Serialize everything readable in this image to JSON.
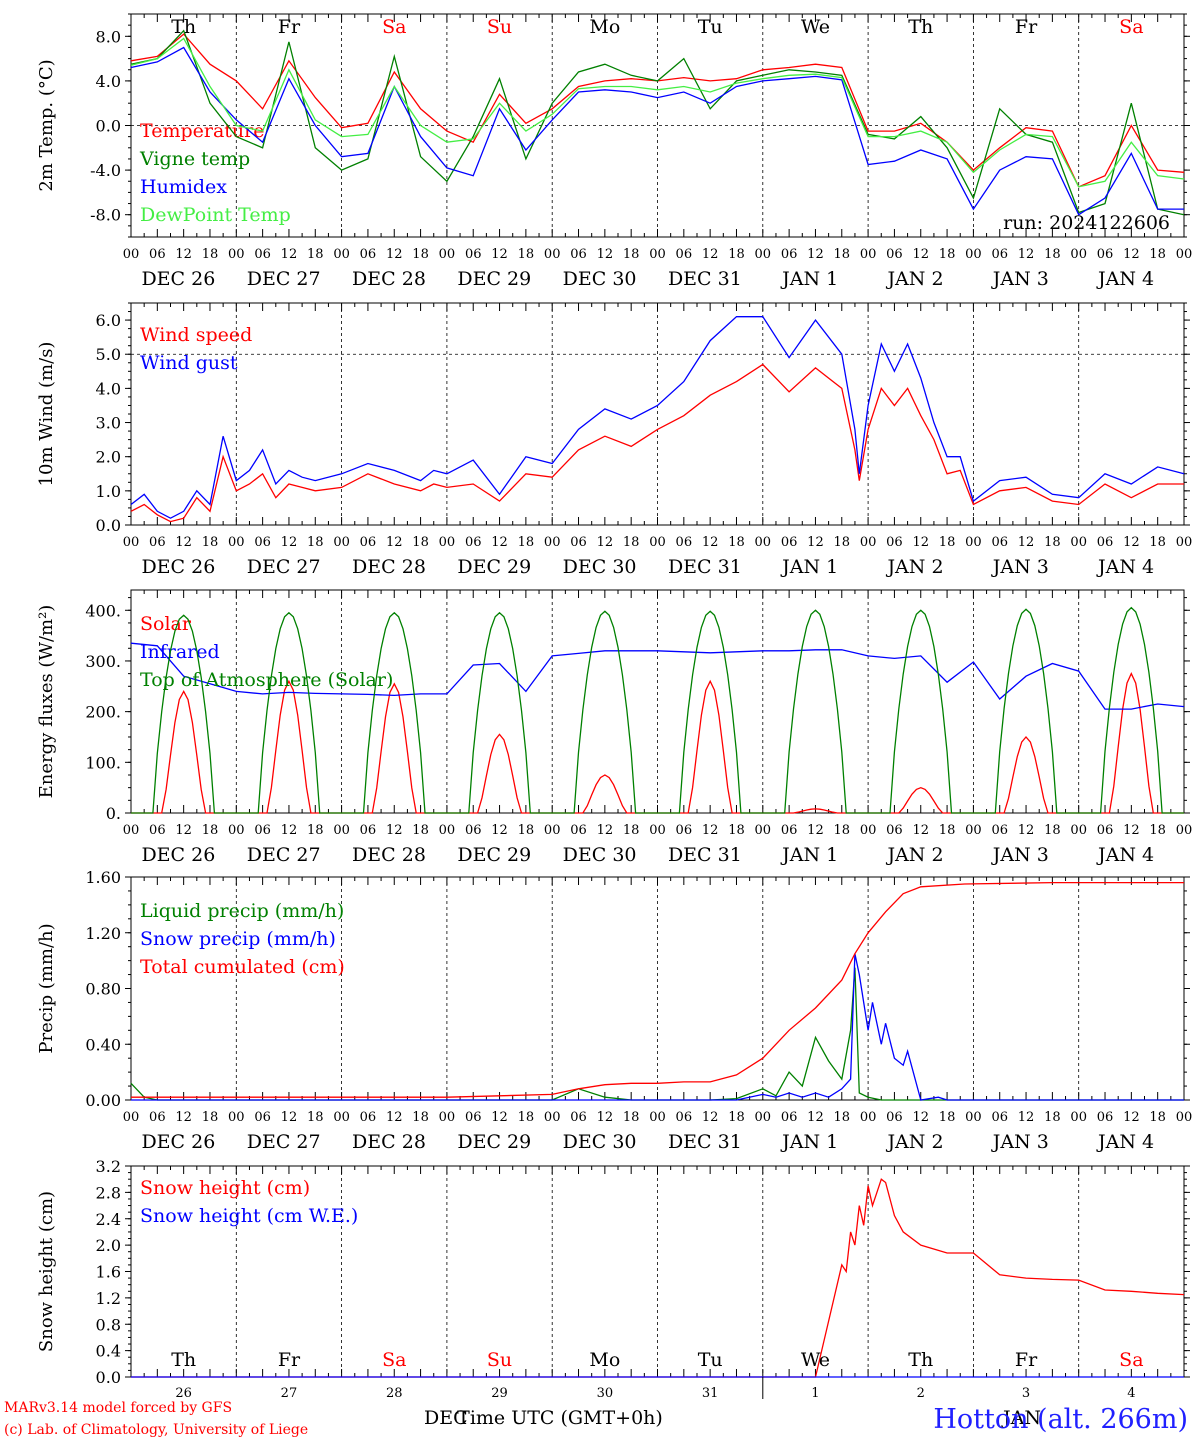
{
  "chart_data": [
    {
      "type": "line",
      "ylabel": "2m Temp. (°C)",
      "ylim": [
        -10,
        10
      ],
      "yticks": [
        "8.0",
        "4.0",
        "0.0",
        "-4.0",
        "-8.0"
      ],
      "ytick_values": [
        8,
        4,
        0,
        -4,
        -8
      ],
      "dashed_y": 0,
      "day_names": [
        "Th",
        "Fr",
        "Sa",
        "Su",
        "Mo",
        "Tu",
        "We",
        "Th",
        "Fr",
        "Sa"
      ],
      "run_label": "run: 2024122606",
      "x_unit": "hours from 00 UTC Dec 26",
      "series": [
        {
          "name": "Temperature",
          "color": "#ff0000",
          "x": [
            0,
            6,
            12,
            18,
            24,
            30,
            36,
            42,
            48,
            54,
            60,
            66,
            72,
            78,
            84,
            90,
            96,
            102,
            108,
            114,
            120,
            126,
            132,
            138,
            144,
            150,
            156,
            162,
            168,
            174,
            180,
            186,
            192,
            198,
            204,
            210,
            216,
            222,
            228,
            234,
            240
          ],
          "y": [
            5.8,
            6.2,
            8.2,
            5.5,
            4,
            1.5,
            5.8,
            2.5,
            -0.2,
            0.2,
            4.8,
            1.5,
            -0.5,
            -1.5,
            2.8,
            0.2,
            1.5,
            3.5,
            4,
            4.2,
            4,
            4.3,
            4,
            4.2,
            5,
            5.2,
            5.5,
            5.2,
            -0.5,
            -0.5,
            0.2,
            -1.5,
            -4,
            -2,
            -0.2,
            -0.5,
            -5.5,
            -4.5,
            0,
            -4,
            -4.2
          ]
        },
        {
          "name": "Vigne temp",
          "color": "#008000",
          "x": [
            0,
            6,
            12,
            18,
            24,
            30,
            36,
            42,
            48,
            54,
            60,
            66,
            72,
            78,
            84,
            90,
            96,
            102,
            108,
            114,
            120,
            126,
            132,
            138,
            144,
            150,
            156,
            162,
            168,
            174,
            180,
            186,
            192,
            198,
            204,
            210,
            216,
            222,
            228,
            234,
            240
          ],
          "y": [
            5.5,
            6,
            8.5,
            2,
            -1,
            -2,
            7.5,
            -2,
            -4,
            -3,
            6.2,
            -2.8,
            -5,
            -1,
            4.2,
            -3,
            2,
            4.8,
            5.5,
            4.5,
            4,
            6,
            1.5,
            4,
            4.5,
            5,
            4.8,
            4.5,
            -0.8,
            -1.2,
            0.8,
            -2,
            -6.5,
            1.5,
            -0.8,
            -1.5,
            -7.8,
            -7,
            2,
            -7.5,
            -8
          ]
        },
        {
          "name": "Humidex",
          "color": "#0000ff",
          "x": [
            0,
            6,
            12,
            18,
            24,
            30,
            36,
            42,
            48,
            54,
            60,
            66,
            72,
            78,
            84,
            90,
            96,
            102,
            108,
            114,
            120,
            126,
            132,
            138,
            144,
            150,
            156,
            162,
            168,
            174,
            180,
            186,
            192,
            198,
            204,
            210,
            216,
            222,
            228,
            234,
            240
          ],
          "y": [
            5.2,
            5.7,
            7,
            3,
            0.5,
            -1.5,
            4.2,
            0,
            -2.8,
            -2.5,
            3.5,
            -1,
            -3.8,
            -4.5,
            1.5,
            -2.2,
            0.5,
            3,
            3.2,
            3,
            2.5,
            3,
            2,
            3.5,
            4,
            4.2,
            4.4,
            4.1,
            -3.5,
            -3.2,
            -2.2,
            -3,
            -7.5,
            -4,
            -2.8,
            -3,
            -8,
            -6.5,
            -2.5,
            -7.5,
            -7.5
          ]
        },
        {
          "name": "DewPoint Temp",
          "color": "#44ee44",
          "x": [
            0,
            6,
            12,
            18,
            24,
            30,
            36,
            42,
            48,
            54,
            60,
            66,
            72,
            78,
            84,
            90,
            96,
            102,
            108,
            114,
            120,
            126,
            132,
            138,
            144,
            150,
            156,
            162,
            168,
            174,
            180,
            186,
            192,
            198,
            204,
            210,
            216,
            222,
            228,
            234,
            240
          ],
          "y": [
            5.4,
            6,
            7.8,
            3.5,
            0,
            -0.5,
            5,
            0.5,
            -1,
            -0.8,
            3.5,
            0,
            -1.5,
            -1.2,
            2,
            -0.5,
            1,
            3.3,
            3.5,
            3.5,
            3.2,
            3.5,
            3,
            3.8,
            4.2,
            4.5,
            4.6,
            4.3,
            -1,
            -1,
            -0.5,
            -1.5,
            -4.2,
            -2.2,
            -0.8,
            -1,
            -5.5,
            -5,
            -1.5,
            -4.5,
            -4.8
          ]
        }
      ]
    },
    {
      "type": "line",
      "ylabel": "10m Wind (m/s)",
      "ylim": [
        0,
        6.5
      ],
      "yticks": [
        "6.0",
        "5.0",
        "4.0",
        "3.0",
        "2.0",
        "1.0",
        "0.0"
      ],
      "ytick_values": [
        6,
        5,
        4,
        3,
        2,
        1,
        0
      ],
      "dashed_y": 5,
      "x_unit": "hours from 00 UTC Dec 26",
      "series": [
        {
          "name": "Wind speed",
          "color": "#ff0000",
          "x": [
            0,
            3,
            6,
            9,
            12,
            15,
            18,
            21,
            24,
            27,
            30,
            33,
            36,
            39,
            42,
            48,
            54,
            60,
            66,
            69,
            72,
            78,
            84,
            90,
            96,
            102,
            108,
            114,
            120,
            126,
            132,
            138,
            144,
            150,
            156,
            162,
            165,
            166,
            168,
            171,
            174,
            177,
            180,
            183,
            186,
            189,
            192,
            198,
            204,
            210,
            216,
            222,
            228,
            234,
            240
          ],
          "y": [
            0.4,
            0.6,
            0.3,
            0.1,
            0.2,
            0.8,
            0.4,
            2,
            1,
            1.2,
            1.5,
            0.8,
            1.2,
            1.1,
            1,
            1.1,
            1.5,
            1.2,
            1,
            1.2,
            1.1,
            1.2,
            0.7,
            1.5,
            1.4,
            2.2,
            2.6,
            2.3,
            2.8,
            3.2,
            3.8,
            4.2,
            4.7,
            3.9,
            4.6,
            4,
            2.2,
            1.3,
            2.8,
            4,
            3.5,
            4,
            3.2,
            2.5,
            1.5,
            1.6,
            0.6,
            1,
            1.1,
            0.7,
            0.6,
            1.2,
            0.8,
            1.2,
            1.2
          ]
        },
        {
          "name": "Wind gust",
          "color": "#0000ff",
          "x": [
            0,
            3,
            6,
            9,
            12,
            15,
            18,
            21,
            24,
            27,
            30,
            33,
            36,
            39,
            42,
            48,
            54,
            60,
            66,
            69,
            72,
            78,
            84,
            90,
            96,
            102,
            108,
            114,
            120,
            126,
            132,
            138,
            144,
            150,
            156,
            162,
            165,
            166,
            168,
            171,
            174,
            177,
            180,
            183,
            186,
            189,
            192,
            198,
            204,
            210,
            216,
            222,
            228,
            234,
            240
          ],
          "y": [
            0.6,
            0.9,
            0.4,
            0.2,
            0.4,
            1,
            0.6,
            2.6,
            1.3,
            1.6,
            2.2,
            1.2,
            1.6,
            1.4,
            1.3,
            1.5,
            1.8,
            1.6,
            1.3,
            1.6,
            1.5,
            1.9,
            0.9,
            2,
            1.8,
            2.8,
            3.4,
            3.1,
            3.5,
            4.2,
            5.4,
            6.1,
            6.1,
            4.9,
            6,
            5,
            2.8,
            1.5,
            3.5,
            5.3,
            4.5,
            5.3,
            4.3,
            3,
            2,
            2,
            0.7,
            1.3,
            1.4,
            0.9,
            0.8,
            1.5,
            1.2,
            1.7,
            1.5
          ]
        }
      ]
    },
    {
      "type": "line",
      "ylabel": "Energy fluxes (W/m²)",
      "ylim": [
        0,
        440
      ],
      "yticks": [
        "400.",
        "300.",
        "200.",
        "100.",
        "0."
      ],
      "ytick_values": [
        400,
        300,
        200,
        100,
        0
      ],
      "x_unit": "hours from 00 UTC Dec 26",
      "series": [
        {
          "name": "Solar",
          "color": "#ff0000",
          "solar_peaks": [
            240,
            260,
            255,
            155,
            75,
            260,
            8,
            50,
            150,
            275
          ]
        },
        {
          "name": "Infrared",
          "color": "#0000ff",
          "x": [
            0,
            6,
            12,
            18,
            24,
            30,
            36,
            42,
            48,
            54,
            60,
            66,
            72,
            78,
            84,
            90,
            96,
            102,
            108,
            114,
            120,
            126,
            132,
            138,
            144,
            150,
            156,
            162,
            168,
            174,
            180,
            186,
            192,
            198,
            204,
            210,
            216,
            222,
            228,
            234,
            240
          ],
          "y": [
            335,
            330,
            270,
            255,
            240,
            235,
            238,
            236,
            235,
            234,
            232,
            235,
            235,
            292,
            295,
            240,
            310,
            315,
            320,
            320,
            320,
            318,
            316,
            318,
            320,
            320,
            322,
            322,
            310,
            305,
            310,
            258,
            298,
            225,
            270,
            295,
            280,
            205,
            205,
            215,
            210
          ]
        },
        {
          "name": "Top of Atmosphere (Solar)",
          "color": "#008000",
          "toa_peaks": [
            390,
            395,
            395,
            395,
            398,
            398,
            400,
            400,
            402,
            405
          ]
        }
      ]
    },
    {
      "type": "line",
      "ylabel": "Precip (mm/h)",
      "ylim": [
        0,
        1.6
      ],
      "yticks": [
        "1.60",
        "1.20",
        "0.80",
        "0.40",
        "0.00"
      ],
      "ytick_values": [
        1.6,
        1.2,
        0.8,
        0.4,
        0
      ],
      "x_unit": "hours from 00 UTC Dec 26",
      "series": [
        {
          "name": "Liquid precip (mm/h)",
          "color": "#008000",
          "x": [
            0,
            3,
            6,
            12,
            96,
            102,
            108,
            114,
            132,
            138,
            144,
            147,
            150,
            153,
            156,
            159,
            162,
            164,
            165,
            166,
            168,
            171,
            174,
            180,
            192,
            240
          ],
          "y": [
            0.12,
            0.02,
            0,
            0,
            0,
            0.08,
            0.02,
            0,
            0,
            0.01,
            0.08,
            0.03,
            0.2,
            0.1,
            0.45,
            0.28,
            0.15,
            0.5,
            0.95,
            0.05,
            0.02,
            0,
            0,
            0,
            0,
            0
          ]
        },
        {
          "name": "Snow precip (mm/h)",
          "color": "#0000ff",
          "x": [
            0,
            138,
            144,
            147,
            150,
            153,
            156,
            159,
            162,
            164,
            165,
            166,
            168,
            169,
            171,
            172,
            174,
            176,
            177,
            180,
            184,
            186,
            240
          ],
          "y": [
            0,
            0,
            0.04,
            0.02,
            0.05,
            0.02,
            0.05,
            0.02,
            0.08,
            0.15,
            1.05,
            0.9,
            0.5,
            0.7,
            0.4,
            0.55,
            0.3,
            0.25,
            0.35,
            0,
            0.02,
            0,
            0
          ]
        },
        {
          "name": "Total cumulated (cm)",
          "color": "#ff0000",
          "x": [
            0,
            72,
            84,
            96,
            102,
            108,
            114,
            120,
            126,
            132,
            138,
            144,
            150,
            156,
            162,
            165,
            168,
            172,
            176,
            180,
            190,
            210,
            240
          ],
          "y": [
            0.02,
            0.02,
            0.03,
            0.04,
            0.08,
            0.11,
            0.12,
            0.12,
            0.13,
            0.13,
            0.18,
            0.3,
            0.5,
            0.66,
            0.86,
            1.05,
            1.2,
            1.35,
            1.48,
            1.53,
            1.55,
            1.56,
            1.56
          ]
        }
      ]
    },
    {
      "type": "line",
      "ylabel": "Snow height (cm)",
      "ylim": [
        0,
        3.2
      ],
      "yticks": [
        "3.2",
        "2.8",
        "2.4",
        "2.0",
        "1.6",
        "1.2",
        "0.8",
        "0.4",
        "0.0"
      ],
      "ytick_values": [
        3.2,
        2.8,
        2.4,
        2,
        1.6,
        1.2,
        0.8,
        0.4,
        0
      ],
      "x_unit": "hours from 00 UTC Dec 26",
      "date_labels": [
        "26",
        "27",
        "28",
        "29",
        "30",
        "31",
        "1",
        "2",
        "3",
        "4"
      ],
      "month_left": "DEC",
      "month_right": "JAN",
      "series": [
        {
          "name": "Snow height (cm)",
          "color": "#ff0000",
          "x": [
            0,
            156,
            162,
            163,
            164,
            165,
            166,
            167,
            168,
            169,
            170,
            171,
            172,
            173,
            174,
            176,
            180,
            186,
            192,
            198,
            204,
            210,
            216,
            222,
            228,
            234,
            240
          ],
          "y": [
            0,
            0,
            1.7,
            1.6,
            2.2,
            2,
            2.6,
            2.3,
            2.9,
            2.6,
            2.8,
            3.0,
            2.95,
            2.7,
            2.45,
            2.2,
            2.0,
            1.88,
            1.88,
            1.55,
            1.5,
            1.48,
            1.47,
            1.32,
            1.3,
            1.27,
            1.25
          ]
        },
        {
          "name": "Snow height (cm W.E.)",
          "color": "#0000ff",
          "x": [
            0,
            240
          ],
          "y": [
            0,
            0
          ]
        }
      ]
    }
  ],
  "shared_axis": {
    "hour_ticks": [
      "00",
      "06",
      "12",
      "18"
    ],
    "date_labels": [
      "DEC 26",
      "DEC 27",
      "DEC 28",
      "DEC 29",
      "DEC 30",
      "DEC 31",
      "JAN  1",
      "JAN  2",
      "JAN  3",
      "JAN  4"
    ],
    "weekend_color": "#ff0000"
  },
  "footer": {
    "line1": "MARv3.14 model forced by GFS",
    "line2": "(c) Lab. of Climatology, University of Liege",
    "xlabel": "Time UTC (GMT+0h)",
    "station": "Hotton (alt. 266m)"
  }
}
